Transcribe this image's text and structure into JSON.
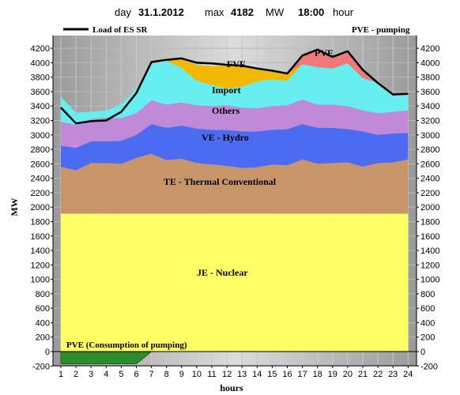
{
  "header": {
    "day_label": "day",
    "day_value": "31.1.2012",
    "max_label": "max",
    "max_value": "4182",
    "unit_label": "MW",
    "hour_value": "18:00",
    "hour_label": "hour"
  },
  "legend": {
    "load_label": "Load of  ES SR",
    "pumping_label": "PVE -  pumping"
  },
  "chart_data": {
    "type": "area",
    "xlabel": "hours",
    "ylabel": "MW",
    "ylim": [
      -200,
      4200
    ],
    "yticks": [
      -200,
      0,
      200,
      400,
      600,
      800,
      1000,
      1200,
      1400,
      1600,
      1800,
      2000,
      2200,
      2400,
      2600,
      2800,
      3000,
      3200,
      3400,
      3600,
      3800,
      4000,
      4200
    ],
    "x": [
      1,
      2,
      3,
      4,
      5,
      6,
      7,
      8,
      9,
      10,
      11,
      12,
      13,
      14,
      15,
      16,
      17,
      18,
      19,
      20,
      21,
      22,
      23,
      24
    ],
    "grid": true,
    "layers_cumulative_top": [
      {
        "name": "JE - Nuclear",
        "color": "#ffff66",
        "top": [
          1910,
          1910,
          1910,
          1910,
          1910,
          1910,
          1910,
          1910,
          1910,
          1910,
          1910,
          1910,
          1910,
          1910,
          1910,
          1910,
          1910,
          1910,
          1910,
          1910,
          1910,
          1910,
          1910,
          1910
        ]
      },
      {
        "name": "TE - Thermal Conventional",
        "color": "#c8956b",
        "top": [
          2560,
          2510,
          2610,
          2610,
          2600,
          2680,
          2740,
          2650,
          2670,
          2610,
          2590,
          2570,
          2540,
          2550,
          2590,
          2580,
          2660,
          2600,
          2610,
          2620,
          2560,
          2610,
          2620,
          2660
        ]
      },
      {
        "name": "VE - Hydro",
        "color": "#4b6cf0",
        "top": [
          2850,
          2820,
          2910,
          2910,
          2920,
          3000,
          3150,
          3100,
          3130,
          3090,
          3070,
          3070,
          3050,
          3050,
          3070,
          3080,
          3150,
          3100,
          3100,
          3080,
          3050,
          3000,
          3020,
          3030
        ]
      },
      {
        "name": "Others",
        "color": "#c08ad8",
        "top": [
          3180,
          3140,
          3220,
          3240,
          3230,
          3300,
          3480,
          3420,
          3450,
          3410,
          3400,
          3410,
          3380,
          3370,
          3400,
          3410,
          3490,
          3420,
          3420,
          3400,
          3340,
          3300,
          3320,
          3340
        ]
      },
      {
        "name": "Import",
        "color": "#66eef0",
        "top": [
          3530,
          3310,
          3320,
          3340,
          3420,
          3640,
          3980,
          4030,
          3930,
          3750,
          3690,
          3640,
          3670,
          3740,
          3770,
          3750,
          3980,
          3940,
          3920,
          3990,
          3790,
          3720,
          3560,
          3560
        ]
      },
      {
        "name": "FVE",
        "color": "#f5b800",
        "top": [
          3530,
          3310,
          3320,
          3340,
          3420,
          3640,
          3980,
          4030,
          4060,
          3970,
          3950,
          3960,
          3960,
          3920,
          3880,
          3840,
          3980,
          3940,
          3920,
          3990,
          3790,
          3720,
          3560,
          3560
        ]
      },
      {
        "name": "PVE",
        "color": "#f07878",
        "top": [
          3530,
          3310,
          3320,
          3340,
          3420,
          3640,
          3980,
          4030,
          4060,
          3970,
          3950,
          3960,
          3960,
          3920,
          3880,
          3840,
          4100,
          4180,
          4080,
          4150,
          3900,
          3740,
          3560,
          3560
        ]
      }
    ],
    "load_series": {
      "name": "Load of  ES SR",
      "color": "#000000",
      "values": [
        3380,
        3160,
        3190,
        3200,
        3320,
        3580,
        4010,
        4040,
        4060,
        4000,
        3990,
        3970,
        3960,
        3920,
        3890,
        3850,
        4100,
        4182,
        4080,
        4160,
        3900,
        3720,
        3560,
        3570
      ]
    },
    "pumping_series": {
      "name": "PVE (Consumption of pumping)",
      "color": "#2e8b2e",
      "values": [
        -170,
        -170,
        -170,
        -170,
        -170,
        -170,
        0,
        0,
        0,
        0,
        0,
        0,
        0,
        0,
        0,
        0,
        0,
        0,
        0,
        0,
        0,
        0,
        0,
        0
      ]
    },
    "labels": {
      "nuclear": "JE - Nuclear",
      "thermal": "TE - Thermal Conventional",
      "hydro": "VE - Hydro",
      "others": "Others",
      "import": "Import",
      "fve": "FVE",
      "pve": "PVE",
      "pumping": "PVE (Consumption of pumping)"
    }
  }
}
